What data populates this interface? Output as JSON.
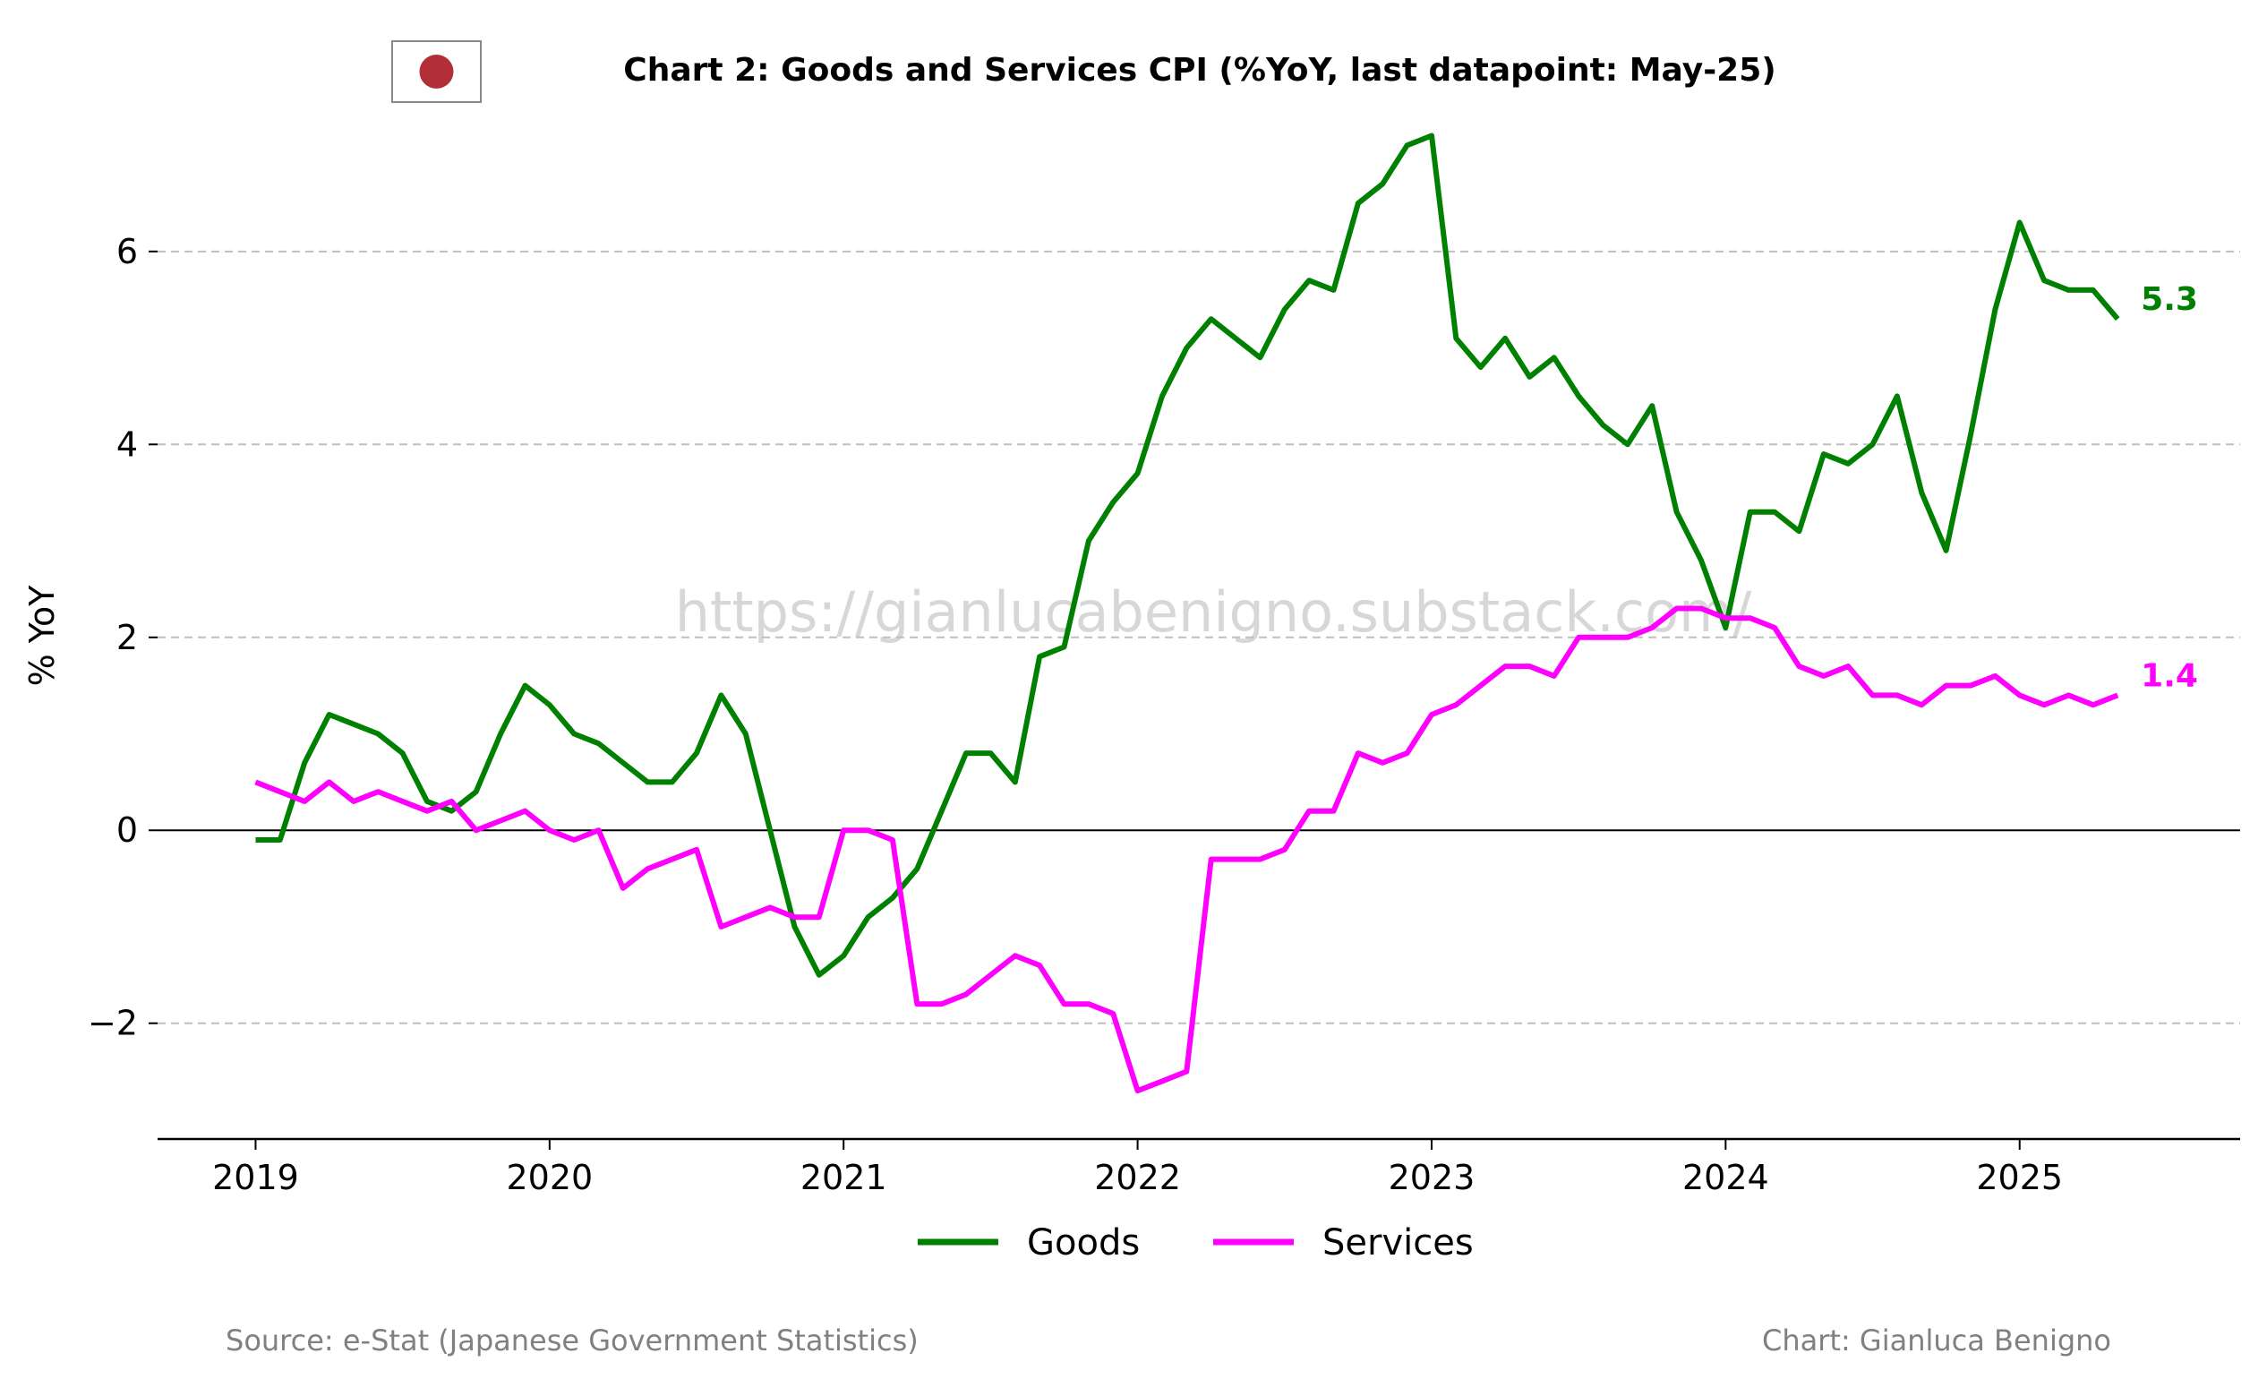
{
  "chart_data": {
    "type": "line",
    "title": "Chart 2: Goods and Services CPI (%YoY, last datapoint: May-25)",
    "ylabel": "% YoY",
    "xlabel": "",
    "xlim": [
      "2018-09",
      "2025-10"
    ],
    "ylim": [
      -3.2,
      7.4
    ],
    "yticks": [
      -2,
      0,
      2,
      4,
      6
    ],
    "ytick_labels": [
      "−2",
      "0",
      "2",
      "4",
      "6"
    ],
    "xticks": [
      "2019-01",
      "2020-01",
      "2021-01",
      "2022-01",
      "2023-01",
      "2024-01",
      "2025-01"
    ],
    "xtick_labels": [
      "2019",
      "2020",
      "2021",
      "2022",
      "2023",
      "2024",
      "2025"
    ],
    "grid": "horizontal-dashed",
    "legend_position": "bottom-center",
    "start_month": "2019-01",
    "series": [
      {
        "name": "Goods",
        "color": "#008000",
        "end_label": "5.3",
        "values": [
          -0.1,
          -0.1,
          0.7,
          1.2,
          1.1,
          1.0,
          0.8,
          0.3,
          0.2,
          0.4,
          1.0,
          1.5,
          1.3,
          1.0,
          0.9,
          0.7,
          0.5,
          0.5,
          0.8,
          1.4,
          1.0,
          0.0,
          -1.0,
          -1.5,
          -1.3,
          -0.9,
          -0.7,
          -0.4,
          0.2,
          0.8,
          0.8,
          0.5,
          1.8,
          1.9,
          3.0,
          3.4,
          3.7,
          4.5,
          5.0,
          5.3,
          5.1,
          4.9,
          5.4,
          5.7,
          5.6,
          6.5,
          6.7,
          7.1,
          7.2,
          5.1,
          4.8,
          5.1,
          4.7,
          4.9,
          4.5,
          4.2,
          4.0,
          4.4,
          3.3,
          2.8,
          2.1,
          3.3,
          3.3,
          3.1,
          3.9,
          3.8,
          4.0,
          4.5,
          3.5,
          2.9,
          4.1,
          5.4,
          6.3,
          5.7,
          5.6,
          5.6,
          5.3
        ]
      },
      {
        "name": "Services",
        "color": "#ff00ff",
        "end_label": "1.4",
        "values": [
          0.5,
          0.4,
          0.3,
          0.5,
          0.3,
          0.4,
          0.3,
          0.2,
          0.3,
          0.0,
          0.1,
          0.2,
          0.0,
          -0.1,
          0.0,
          -0.6,
          -0.4,
          -0.3,
          -0.2,
          -1.0,
          -0.9,
          -0.8,
          -0.9,
          -0.9,
          0.0,
          0.0,
          -0.1,
          -1.8,
          -1.8,
          -1.7,
          -1.5,
          -1.3,
          -1.4,
          -1.8,
          -1.8,
          -1.9,
          -2.7,
          -2.6,
          -2.5,
          -0.3,
          -0.3,
          -0.3,
          -0.2,
          0.2,
          0.2,
          0.8,
          0.7,
          0.8,
          1.2,
          1.3,
          1.5,
          1.7,
          1.7,
          1.6,
          2.0,
          2.0,
          2.0,
          2.1,
          2.3,
          2.3,
          2.2,
          2.2,
          2.1,
          1.7,
          1.6,
          1.7,
          1.4,
          1.4,
          1.3,
          1.5,
          1.5,
          1.6,
          1.4,
          1.3,
          1.4,
          1.3,
          1.4
        ]
      }
    ]
  },
  "header": {
    "flag_icon": "japan-flag-icon",
    "flag_color": "#b22f37"
  },
  "watermark": "https://gianlucabenigno.substack.com/",
  "footer": {
    "source": "Source: e-Stat (Japanese Government Statistics)",
    "credit": "Chart: Gianluca Benigno"
  }
}
